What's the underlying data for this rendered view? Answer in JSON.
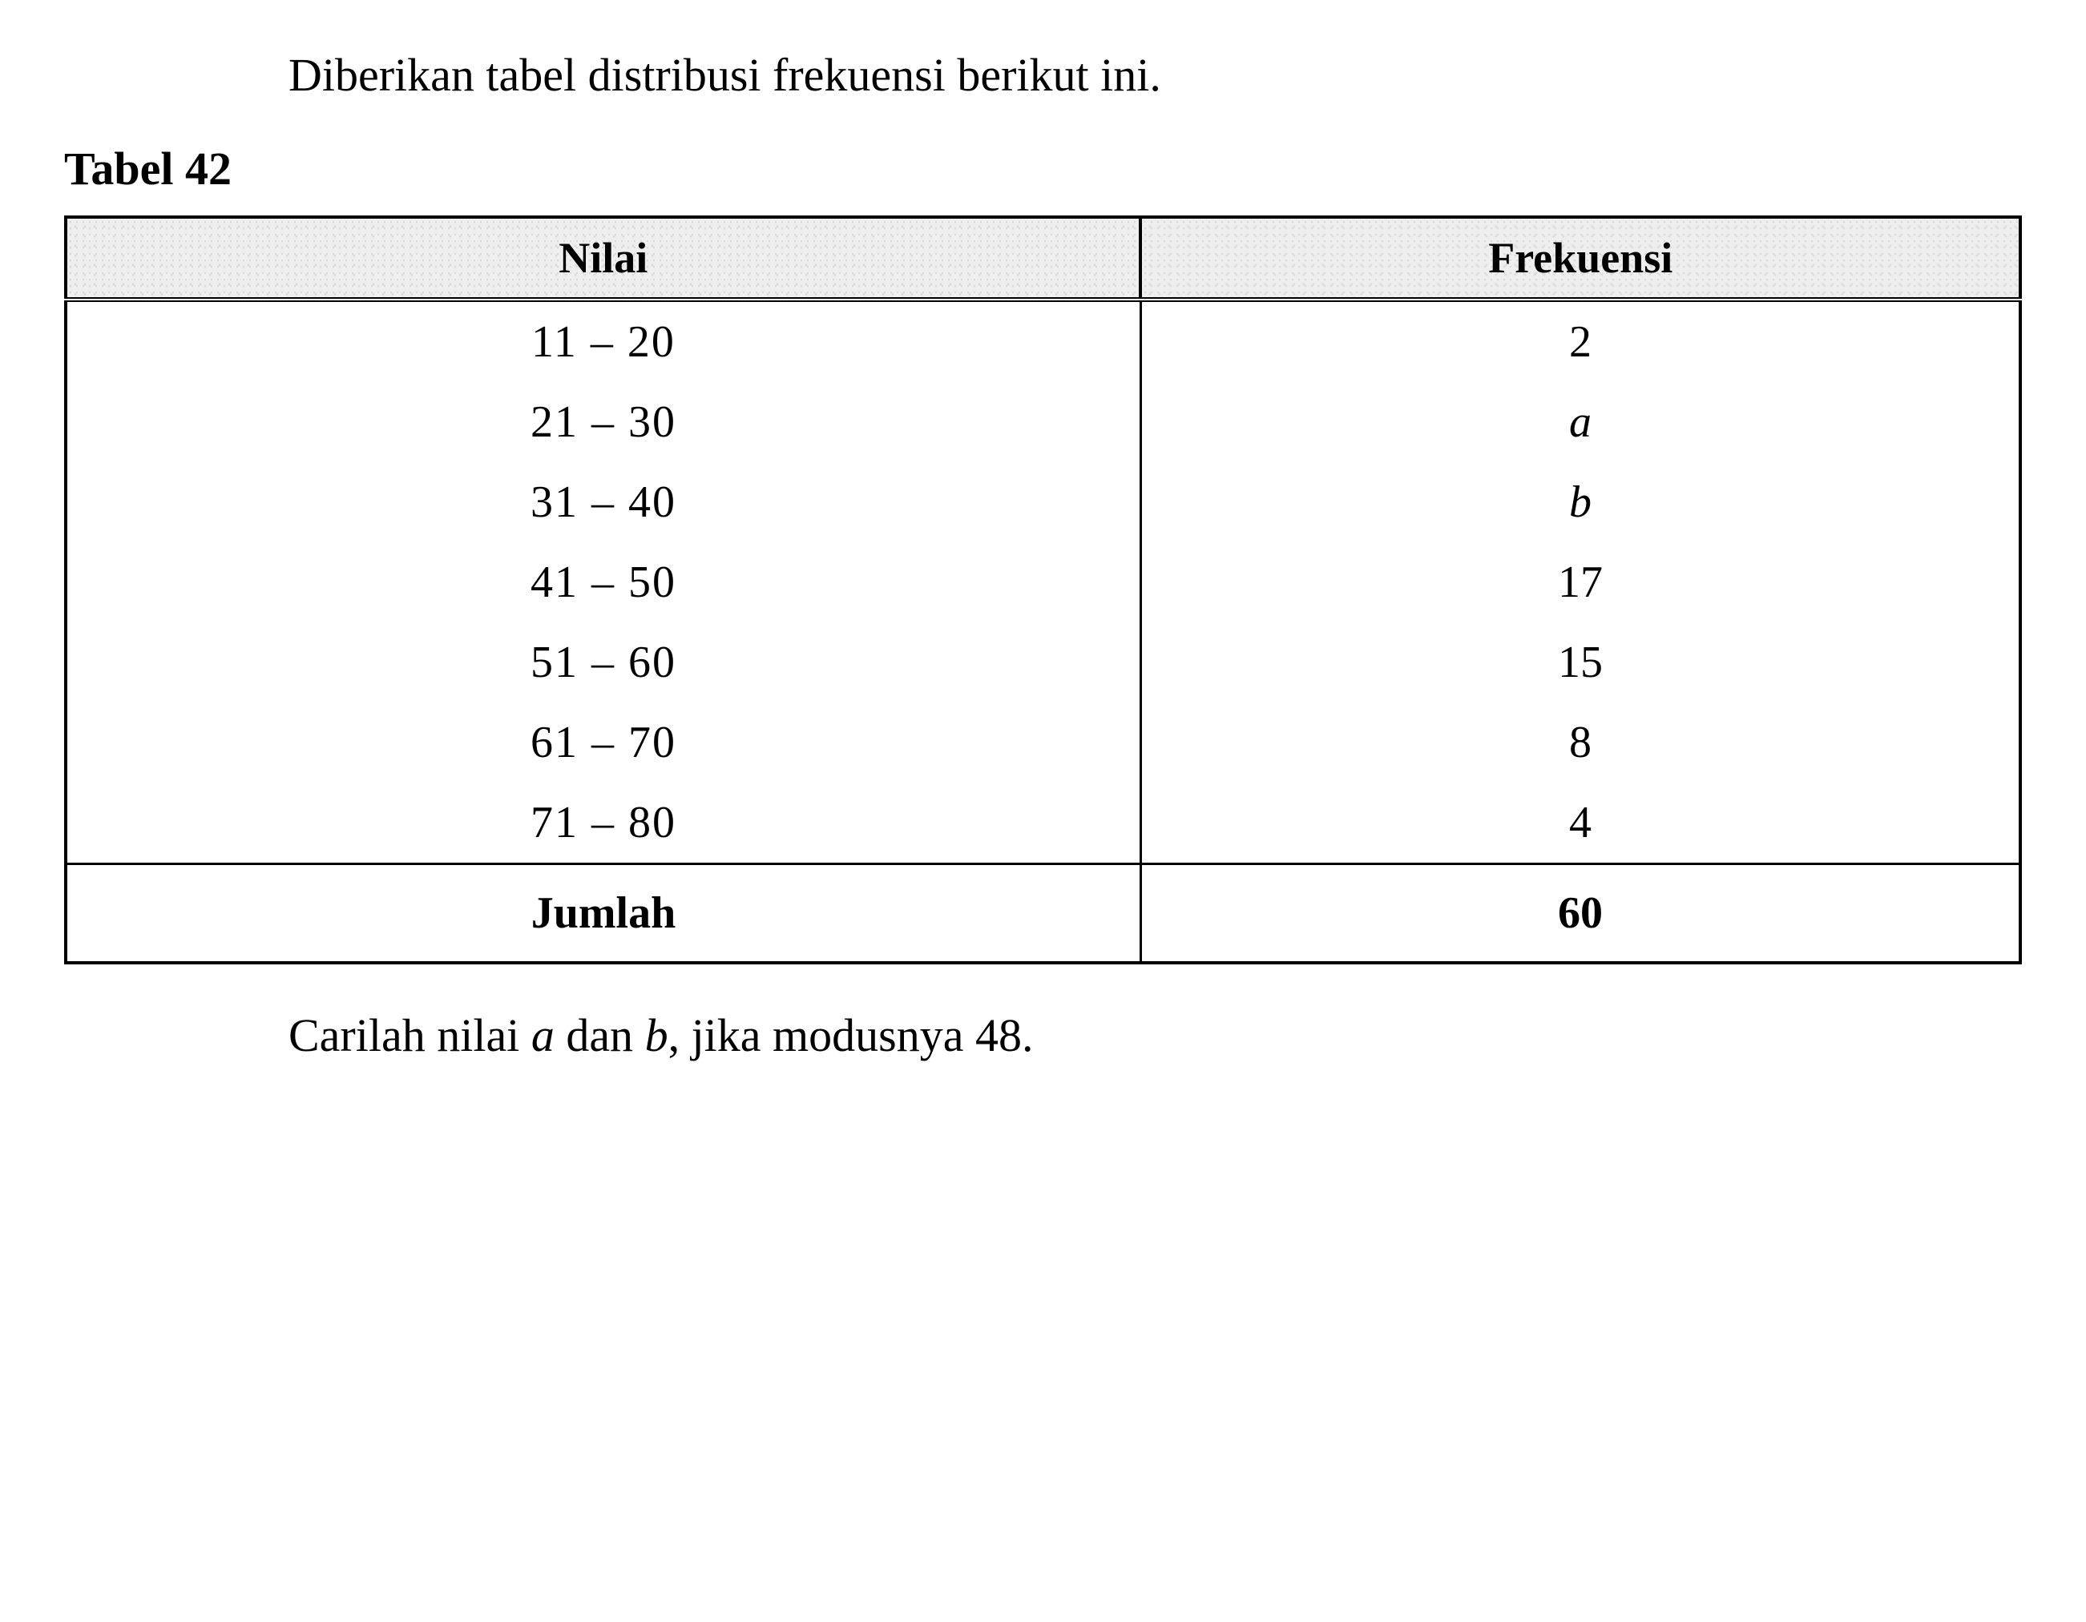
{
  "intro": "Diberikan tabel distribusi frekuensi berikut ini.",
  "table_label": "Tabel 42",
  "headers": {
    "col1": "Nilai",
    "col2": "Frekuensi"
  },
  "rows": [
    {
      "nilai": "11 – 20",
      "frekuensi": "2",
      "italic": false
    },
    {
      "nilai": "21 – 30",
      "frekuensi": "a",
      "italic": true
    },
    {
      "nilai": "31 – 40",
      "frekuensi": "b",
      "italic": true
    },
    {
      "nilai": "41 – 50",
      "frekuensi": "17",
      "italic": false
    },
    {
      "nilai": "51 – 60",
      "frekuensi": "15",
      "italic": false
    },
    {
      "nilai": "61 – 70",
      "frekuensi": "8",
      "italic": false
    },
    {
      "nilai": "71 – 80",
      "frekuensi": "4",
      "italic": false
    }
  ],
  "total": {
    "label": "Jumlah",
    "value": "60"
  },
  "question": {
    "before_a": "Carilah nilai ",
    "a": "a",
    "between": " dan ",
    "b": "b",
    "after_b": ", jika modusnya 48."
  },
  "styling": {
    "font_family": "Times New Roman",
    "body_fontsize": 58,
    "header_bg": "#eeeeee",
    "border_color": "#000000",
    "text_color": "#000000",
    "background_color": "#ffffff"
  }
}
